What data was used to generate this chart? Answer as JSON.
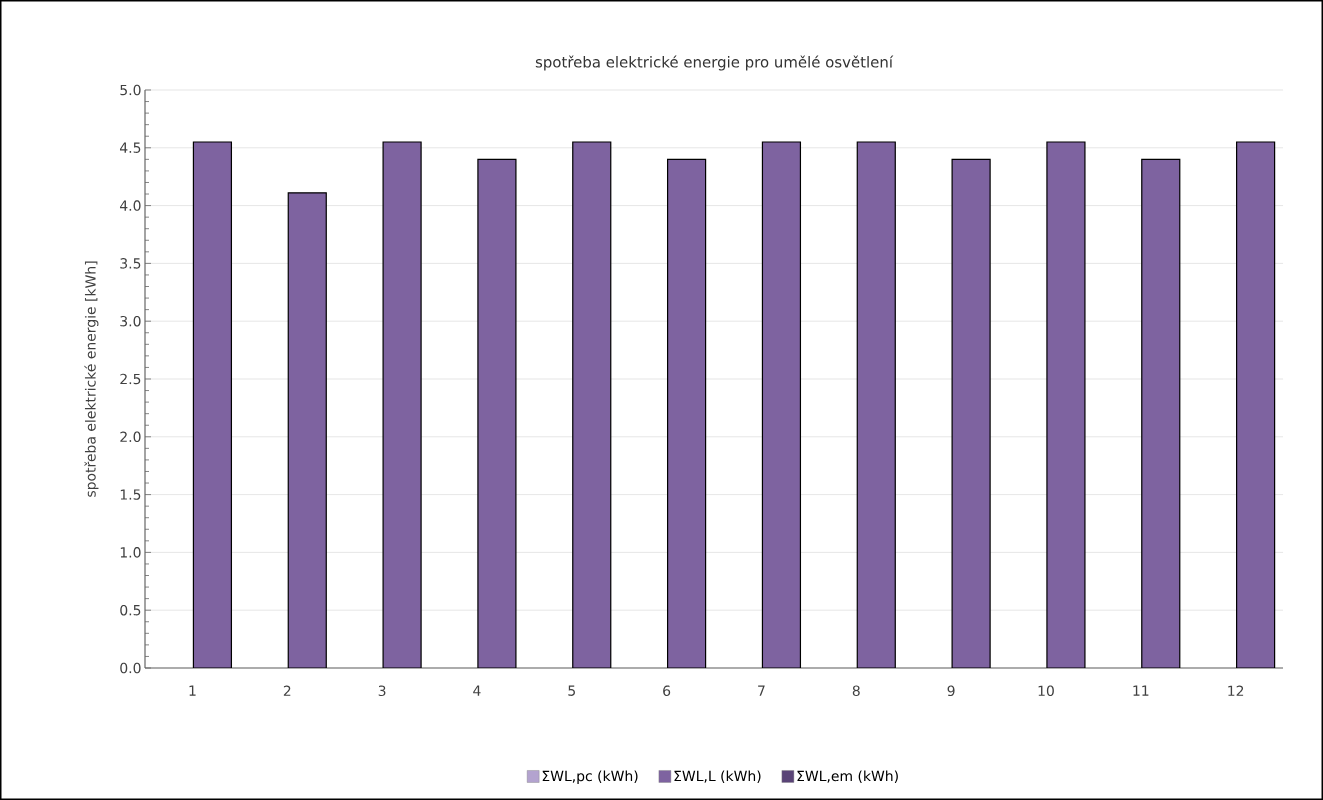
{
  "chart_data": {
    "type": "bar",
    "title": "spotřeba elektrické energie pro umělé osvětlení",
    "ylabel": "spotřeba elektrické energie [kWh]",
    "categories": [
      "1",
      "2",
      "3",
      "4",
      "5",
      "6",
      "7",
      "8",
      "9",
      "10",
      "11",
      "12"
    ],
    "series": [
      {
        "name": "ΣWL,pc (kWh)",
        "color": "#b3a3cf",
        "values": [
          null,
          null,
          null,
          null,
          null,
          null,
          null,
          null,
          null,
          null,
          null,
          null
        ]
      },
      {
        "name": "ΣWL,L (kWh)",
        "color": "#7e63a0",
        "values": [
          4.55,
          4.11,
          4.55,
          4.4,
          4.55,
          4.4,
          4.55,
          4.55,
          4.4,
          4.55,
          4.4,
          4.55
        ]
      },
      {
        "name": "ΣWL,em (kWh)",
        "color": "#5a4477",
        "values": [
          null,
          null,
          null,
          null,
          null,
          null,
          null,
          null,
          null,
          null,
          null,
          null
        ]
      }
    ],
    "ylim": [
      0,
      5
    ],
    "yticks": [
      {
        "value": 0,
        "label": "0.0"
      },
      0.5,
      {
        "value": 1,
        "label": "1.0"
      },
      1.5,
      {
        "value": 2,
        "label": "2.0"
      },
      2.5,
      {
        "value": 3,
        "label": "3.0"
      },
      3.5,
      {
        "value": 4,
        "label": "4.0"
      },
      4.5,
      {
        "value": 5,
        "label": "5.0"
      }
    ],
    "grid": "y",
    "legend": "bottom"
  }
}
